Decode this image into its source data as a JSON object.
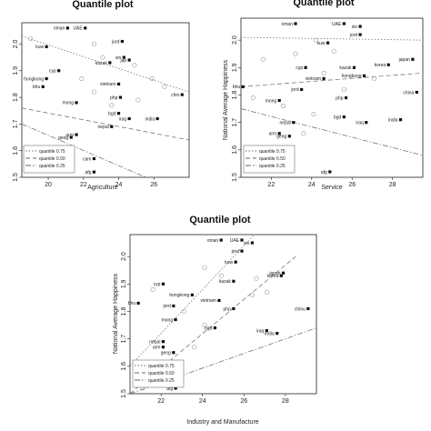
{
  "chart_data": [
    {
      "type": "scatter",
      "title": "Quantile plot",
      "xlabel": "Agriculture",
      "ylabel": "",
      "xlim": [
        18.5,
        28
      ],
      "ylim": [
        1.5,
        2.08
      ],
      "xticks": [
        20,
        22,
        24,
        26
      ],
      "yticks": [
        1.5,
        1.6,
        1.7,
        1.8,
        1.9,
        2.0
      ],
      "points": [
        {
          "label": "oman",
          "x": 21.1,
          "y": 2.06
        },
        {
          "label": "UAE",
          "x": 22.1,
          "y": 2.06
        },
        {
          "label": "kuw",
          "x": 19.9,
          "y": 1.99
        },
        {
          "label": "jord",
          "x": 24.2,
          "y": 2.01
        },
        {
          "label": "cyp",
          "x": 20.6,
          "y": 1.9
        },
        {
          "label": "hongkong",
          "x": 19.9,
          "y": 1.87
        },
        {
          "label": "bhu",
          "x": 19.7,
          "y": 1.84
        },
        {
          "label": "kazak",
          "x": 23.5,
          "y": 1.93
        },
        {
          "label": "jap",
          "x": 24.6,
          "y": 1.94
        },
        {
          "label": "sin",
          "x": 24.3,
          "y": 1.95
        },
        {
          "label": "vietnam",
          "x": 24.0,
          "y": 1.85
        },
        {
          "label": "mong",
          "x": 21.6,
          "y": 1.78
        },
        {
          "label": "php",
          "x": 24.1,
          "y": 1.8
        },
        {
          "label": "bgd",
          "x": 24.0,
          "y": 1.74
        },
        {
          "label": "iraq",
          "x": 24.6,
          "y": 1.72
        },
        {
          "label": "india",
          "x": 26.2,
          "y": 1.72
        },
        {
          "label": "nepal",
          "x": 23.6,
          "y": 1.69
        },
        {
          "label": "arm",
          "x": 21.6,
          "y": 1.66
        },
        {
          "label": "geog",
          "x": 21.3,
          "y": 1.65
        },
        {
          "label": "cam",
          "x": 22.6,
          "y": 1.57
        },
        {
          "label": "afg",
          "x": 22.6,
          "y": 1.52
        },
        {
          "label": "chin",
          "x": 27.6,
          "y": 1.81
        }
      ],
      "hollow": [
        [
          19.0,
          2.02
        ],
        [
          22.6,
          2.0
        ],
        [
          23.1,
          1.95
        ],
        [
          24.9,
          1.92
        ],
        [
          25.9,
          1.87
        ],
        [
          26.6,
          1.84
        ],
        [
          21.9,
          1.87
        ],
        [
          22.6,
          1.82
        ],
        [
          23.6,
          1.77
        ],
        [
          25.1,
          1.79
        ]
      ],
      "quantiles": [
        {
          "name": "quantile 0.75",
          "dash": "dotted",
          "from": [
            18.5,
            2.03
          ],
          "to": [
            28,
            1.82
          ]
        },
        {
          "name": "quantile 0.50",
          "dash": "dashed",
          "from": [
            18.5,
            1.76
          ],
          "to": [
            28,
            1.64
          ]
        },
        {
          "name": "quantile 0.25",
          "dash": "dotdash",
          "from": [
            18.5,
            1.7
          ],
          "to": [
            28,
            1.43
          ]
        }
      ]
    },
    {
      "type": "scatter",
      "title": "Quantile plot",
      "xlabel": "Service",
      "ylabel": "National Average Happiness",
      "xlim": [
        20.5,
        29.5
      ],
      "ylim": [
        1.5,
        2.08
      ],
      "xticks": [
        22,
        24,
        26,
        28
      ],
      "yticks": [
        1.5,
        1.6,
        1.7,
        1.8,
        1.9,
        2.0
      ],
      "points": [
        {
          "label": "oman",
          "x": 23.2,
          "y": 2.06
        },
        {
          "label": "UAE",
          "x": 25.6,
          "y": 2.06
        },
        {
          "label": "sin",
          "x": 26.4,
          "y": 2.05
        },
        {
          "label": "jord",
          "x": 26.4,
          "y": 2.02
        },
        {
          "label": "kuw",
          "x": 24.8,
          "y": 1.99
        },
        {
          "label": "cyp",
          "x": 23.7,
          "y": 1.9
        },
        {
          "label": "kazak",
          "x": 26.1,
          "y": 1.9
        },
        {
          "label": "korea",
          "x": 27.8,
          "y": 1.91
        },
        {
          "label": "japan",
          "x": 29.0,
          "y": 1.93
        },
        {
          "label": "bhu",
          "x": 20.6,
          "y": 1.83
        },
        {
          "label": "hongkong",
          "x": 26.6,
          "y": 1.87
        },
        {
          "label": "vietnam",
          "x": 24.6,
          "y": 1.86
        },
        {
          "label": "jord",
          "x": 23.5,
          "y": 1.82
        },
        {
          "label": "php",
          "x": 25.7,
          "y": 1.79
        },
        {
          "label": "mong",
          "x": 22.4,
          "y": 1.78
        },
        {
          "label": "nepal",
          "x": 23.1,
          "y": 1.7
        },
        {
          "label": "bgd",
          "x": 25.6,
          "y": 1.72
        },
        {
          "label": "iraq",
          "x": 26.7,
          "y": 1.7
        },
        {
          "label": "india",
          "x": 28.4,
          "y": 1.71
        },
        {
          "label": "arm",
          "x": 22.4,
          "y": 1.66
        },
        {
          "label": "geog",
          "x": 22.9,
          "y": 1.65
        },
        {
          "label": "afg",
          "x": 24.9,
          "y": 1.52
        },
        {
          "label": "china",
          "x": 29.2,
          "y": 1.81
        }
      ],
      "hollow": [
        [
          24.2,
          2.0
        ],
        [
          25.1,
          1.96
        ],
        [
          23.2,
          1.95
        ],
        [
          21.6,
          1.93
        ],
        [
          24.6,
          1.88
        ],
        [
          27.1,
          1.86
        ],
        [
          21.1,
          1.79
        ],
        [
          22.6,
          1.76
        ],
        [
          24.1,
          1.73
        ],
        [
          25.6,
          1.82
        ],
        [
          23.6,
          1.66
        ]
      ],
      "quantiles": [
        {
          "name": "quantile 0.75",
          "dash": "dotted",
          "from": [
            20.5,
            2.01
          ],
          "to": [
            29.5,
            2.0
          ]
        },
        {
          "name": "quantile 0.50",
          "dash": "dashed",
          "from": [
            20.5,
            1.83
          ],
          "to": [
            29.5,
            1.88
          ]
        },
        {
          "name": "quantile 0.25",
          "dash": "dotdash",
          "from": [
            20.5,
            1.75
          ],
          "to": [
            29.5,
            1.58
          ]
        }
      ]
    },
    {
      "type": "scatter",
      "title": "Quantile plot",
      "xlabel": "Industry and Manufacture",
      "ylabel": "National Average Happiness",
      "xlim": [
        20.5,
        29.5
      ],
      "ylim": [
        1.5,
        2.08
      ],
      "xticks": [
        22,
        24,
        26,
        28
      ],
      "yticks": [
        1.5,
        1.6,
        1.7,
        1.8,
        1.9,
        2.0
      ],
      "points": [
        {
          "label": "oman",
          "x": 24.9,
          "y": 2.06
        },
        {
          "label": "UAE",
          "x": 25.9,
          "y": 2.06
        },
        {
          "label": "sin",
          "x": 26.4,
          "y": 2.05
        },
        {
          "label": "jord",
          "x": 25.9,
          "y": 2.02
        },
        {
          "label": "kuw",
          "x": 25.6,
          "y": 1.98
        },
        {
          "label": "cyp",
          "x": 22.1,
          "y": 1.9
        },
        {
          "label": "japan",
          "x": 27.9,
          "y": 1.94
        },
        {
          "label": "korea",
          "x": 27.8,
          "y": 1.93
        },
        {
          "label": "kazak",
          "x": 25.5,
          "y": 1.91
        },
        {
          "label": "bhu",
          "x": 20.9,
          "y": 1.83
        },
        {
          "label": "hongkong",
          "x": 23.5,
          "y": 1.86
        },
        {
          "label": "vietnam",
          "x": 24.8,
          "y": 1.84
        },
        {
          "label": "jord",
          "x": 22.6,
          "y": 1.82
        },
        {
          "label": "php",
          "x": 25.5,
          "y": 1.81
        },
        {
          "label": "mong",
          "x": 22.7,
          "y": 1.77
        },
        {
          "label": "bgd",
          "x": 24.6,
          "y": 1.74
        },
        {
          "label": "iraq",
          "x": 27.1,
          "y": 1.73
        },
        {
          "label": "india",
          "x": 27.6,
          "y": 1.72
        },
        {
          "label": "nepal",
          "x": 22.1,
          "y": 1.69
        },
        {
          "label": "arm",
          "x": 22.1,
          "y": 1.67
        },
        {
          "label": "geog",
          "x": 22.6,
          "y": 1.65
        },
        {
          "label": "afg",
          "x": 22.7,
          "y": 1.52
        },
        {
          "label": "chinu",
          "x": 29.1,
          "y": 1.81
        }
      ],
      "hollow": [
        [
          24.1,
          1.96
        ],
        [
          24.9,
          1.93
        ],
        [
          26.6,
          1.92
        ],
        [
          27.1,
          1.87
        ],
        [
          21.6,
          1.88
        ],
        [
          23.1,
          1.8
        ],
        [
          24.1,
          1.75
        ],
        [
          23.6,
          1.67
        ],
        [
          26.4,
          1.86
        ],
        [
          21.1,
          1.52
        ]
      ],
      "quantiles": [
        {
          "name": "quantile 0.75",
          "dash": "dotted",
          "from": [
            20.5,
            1.6
          ],
          "to": [
            26.5,
            2.08
          ]
        },
        {
          "name": "quantile 0.50",
          "dash": "dashed",
          "from": [
            20.5,
            1.5
          ],
          "to": [
            28.5,
            2.0
          ]
        },
        {
          "name": "quantile 0.25",
          "dash": "dotdash",
          "from": [
            20.5,
            1.5
          ],
          "to": [
            29.5,
            1.74
          ]
        }
      ]
    }
  ]
}
